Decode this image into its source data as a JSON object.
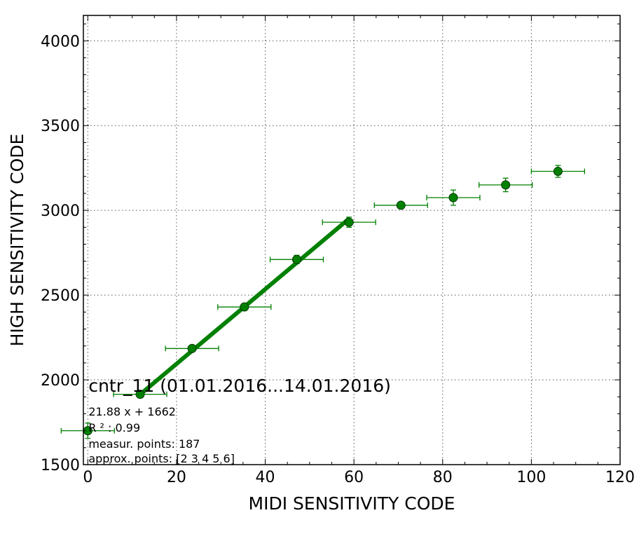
{
  "chart_data": {
    "type": "scatter",
    "xlabel": "MIDI SENSITIVITY CODE",
    "ylabel": "HIGH SENSITIVITY CODE",
    "xlim": [
      -1,
      120
    ],
    "ylim": [
      1500,
      4150
    ],
    "xticks": [
      0,
      20,
      40,
      60,
      80,
      100,
      120
    ],
    "yticks": [
      1500,
      2000,
      2500,
      3000,
      3500,
      4000
    ],
    "grid": true,
    "colors": {
      "points": "#008000",
      "fit_line": "#008000",
      "point_edge": "#003300"
    },
    "series": [
      {
        "points": [
          {
            "x": 0,
            "y": 1700,
            "xerr": 6,
            "yerr": 45
          },
          {
            "x": 11.8,
            "y": 1915,
            "xerr": 6,
            "yerr": 15
          },
          {
            "x": 23.5,
            "y": 2185,
            "xerr": 6,
            "yerr": 15
          },
          {
            "x": 35.3,
            "y": 2430,
            "xerr": 6,
            "yerr": 20
          },
          {
            "x": 47.1,
            "y": 2710,
            "xerr": 6,
            "yerr": 25
          },
          {
            "x": 58.9,
            "y": 2930,
            "xerr": 6,
            "yerr": 30
          },
          {
            "x": 70.6,
            "y": 3030,
            "xerr": 6,
            "yerr": 15
          },
          {
            "x": 82.4,
            "y": 3075,
            "xerr": 6,
            "yerr": 45
          },
          {
            "x": 94.2,
            "y": 3150,
            "xerr": 6,
            "yerr": 40
          },
          {
            "x": 106.0,
            "y": 3230,
            "xerr": 6,
            "yerr": 35
          }
        ]
      }
    ],
    "fit_line": {
      "x": [
        11.8,
        58.9
      ],
      "y": [
        1914,
        2951
      ]
    },
    "annotations": {
      "title": "cntr_11 (01.01.2016...14.01.2016)",
      "equation": "21.88 x + 1662",
      "r2": "R ² : 0.99",
      "measur_points": "measur. points: 187",
      "approx_points": "approx. points: [2 3 4 5 6]"
    }
  }
}
